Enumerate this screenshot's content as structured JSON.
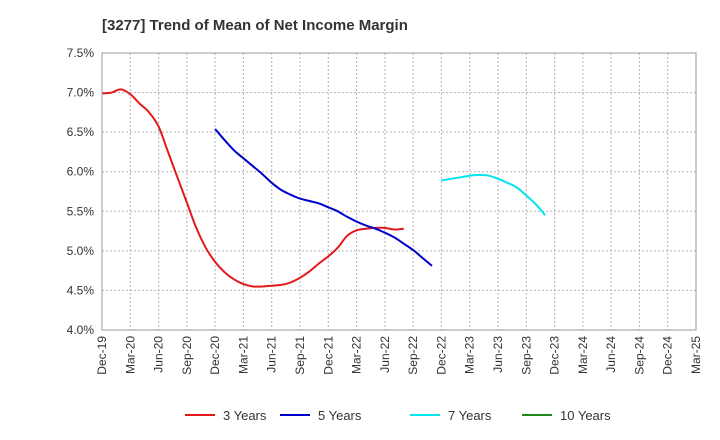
{
  "chart_data": {
    "type": "line",
    "title": "[3277]  Trend of Mean of Net Income Margin",
    "xlabel": "",
    "ylabel": "",
    "y_tick_labels": [
      "4.0%",
      "4.5%",
      "5.0%",
      "5.5%",
      "6.0%",
      "6.5%",
      "7.0%",
      "7.5%"
    ],
    "ylim": [
      4.0,
      7.5
    ],
    "x_tick_labels": [
      "Dec-19",
      "Mar-20",
      "Jun-20",
      "Sep-20",
      "Dec-20",
      "Mar-21",
      "Jun-21",
      "Sep-21",
      "Dec-21",
      "Mar-22",
      "Jun-22",
      "Sep-22",
      "Dec-22",
      "Mar-23",
      "Jun-23",
      "Sep-23",
      "Dec-23",
      "Mar-24",
      "Jun-24",
      "Sep-24",
      "Dec-24",
      "Mar-25"
    ],
    "grid": true,
    "legend_position": "bottom",
    "series": [
      {
        "name": "3 Years",
        "color": "#e31a1c",
        "start_index": 0,
        "values": [
          6.99,
          7.0,
          7.04,
          6.98,
          6.86,
          6.75,
          6.57,
          6.25,
          5.93,
          5.61,
          5.29,
          5.04,
          4.86,
          4.73,
          4.64,
          4.58,
          4.55,
          4.55,
          4.56,
          4.57,
          4.6,
          4.66,
          4.74,
          4.84,
          4.93,
          5.04,
          5.19,
          5.26,
          5.28,
          5.29,
          5.29,
          5.27,
          5.28
        ]
      },
      {
        "name": "5 Years",
        "color": "#0000cc",
        "start_index": 12,
        "values": [
          6.54,
          6.4,
          6.27,
          6.17,
          6.07,
          5.97,
          5.86,
          5.77,
          5.71,
          5.66,
          5.63,
          5.6,
          5.55,
          5.5,
          5.43,
          5.37,
          5.32,
          5.28,
          5.23,
          5.17,
          5.09,
          5.01,
          4.91,
          4.81
        ]
      },
      {
        "name": "7 Years",
        "color": "#00e5ee",
        "start_index": 36,
        "values": [
          5.89,
          5.91,
          5.93,
          5.95,
          5.96,
          5.95,
          5.91,
          5.86,
          5.8,
          5.7,
          5.59,
          5.45
        ]
      },
      {
        "name": "10 Years",
        "color": "#1a8a1a",
        "start_index": 0,
        "values": []
      }
    ]
  }
}
